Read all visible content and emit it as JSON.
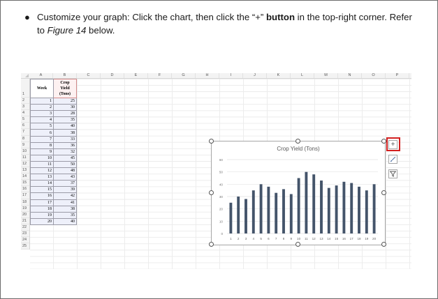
{
  "instruction": {
    "bullet": "●",
    "part1": "Customize your graph: Click the chart, then click the “+” ",
    "bold": "button",
    "part2": " in the top-right corner. Refer to ",
    "italic": "Figure 14",
    "part3": " below."
  },
  "spreadsheet": {
    "columns": [
      "A",
      "B",
      "C",
      "D",
      "E",
      "F",
      "G",
      "H",
      "I",
      "J",
      "K",
      "L",
      "M",
      "N",
      "O",
      "P"
    ],
    "rows": [
      "1",
      "2",
      "3",
      "4",
      "5",
      "6",
      "7",
      "8",
      "9",
      "10",
      "11",
      "12",
      "13",
      "14",
      "15",
      "16",
      "17",
      "18",
      "19",
      "20",
      "21",
      "22",
      "23",
      "24",
      "25"
    ],
    "header_week": "Week",
    "header_yield_l1": "Crop",
    "header_yield_l2": "Yield",
    "header_yield_l3": "(Tons)",
    "weeks": [
      "1",
      "2",
      "3",
      "4",
      "5",
      "6",
      "7",
      "8",
      "9",
      "10",
      "11",
      "12",
      "13",
      "14",
      "15",
      "16",
      "17",
      "18",
      "19",
      "20"
    ],
    "yields": [
      "25",
      "30",
      "28",
      "35",
      "40",
      "38",
      "33",
      "36",
      "32",
      "45",
      "50",
      "48",
      "43",
      "37",
      "39",
      "42",
      "41",
      "38",
      "35",
      "40"
    ]
  },
  "chart_data": {
    "type": "bar",
    "title": "Crop Yield (Tons)",
    "categories": [
      "1",
      "2",
      "3",
      "4",
      "5",
      "6",
      "7",
      "8",
      "9",
      "10",
      "11",
      "12",
      "13",
      "14",
      "15",
      "16",
      "17",
      "18",
      "19",
      "20"
    ],
    "values": [
      25,
      30,
      28,
      35,
      40,
      38,
      33,
      36,
      32,
      45,
      50,
      48,
      43,
      37,
      39,
      42,
      41,
      38,
      35,
      40
    ],
    "yticks": [
      "0",
      "10",
      "20",
      "30",
      "40",
      "50",
      "60"
    ],
    "ylim": [
      0,
      60
    ],
    "grid": true,
    "bar_color": "#44546a"
  },
  "chart_tools": {
    "elements_icon": "+",
    "styles_icon": "brush",
    "filters_icon": "funnel"
  }
}
